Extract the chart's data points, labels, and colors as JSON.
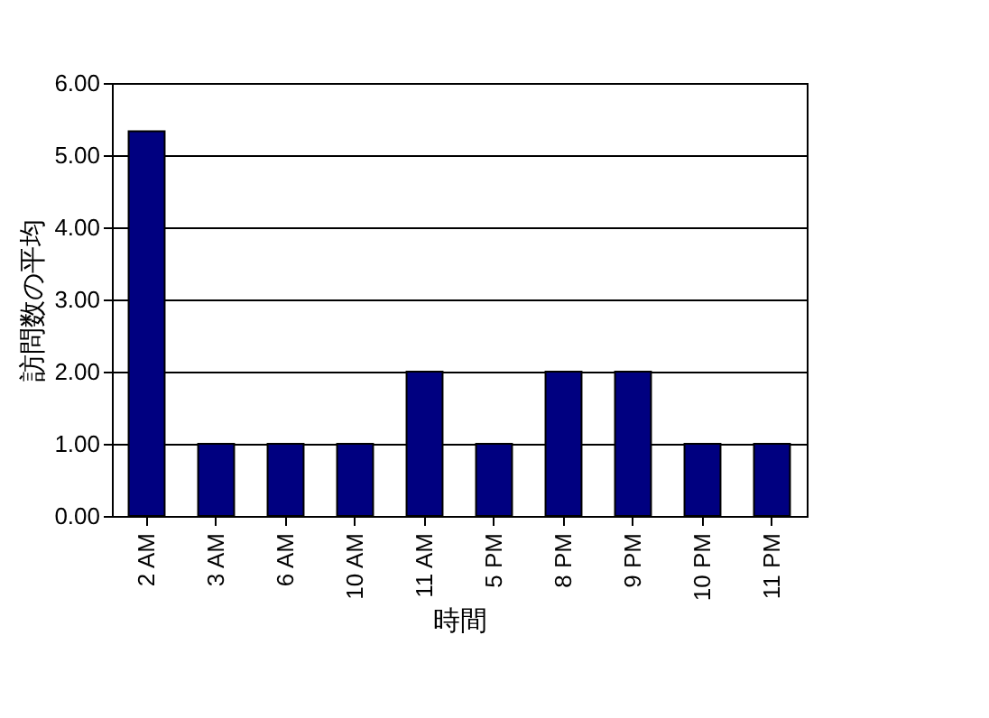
{
  "chart_data": {
    "type": "bar",
    "xlabel": "時間",
    "ylabel": "訪問数の平均",
    "categories": [
      "2 AM",
      "3 AM",
      "6 AM",
      "10 AM",
      "11 AM",
      "5 PM",
      "8 PM",
      "9 PM",
      "10 PM",
      "11 PM"
    ],
    "values": [
      5.33,
      1,
      1,
      1,
      2,
      1,
      2,
      2,
      1,
      1
    ],
    "color": "#000080",
    "ylim": [
      0,
      6
    ],
    "yticks": [
      {
        "value": 0,
        "label": "0.00"
      },
      {
        "value": 1,
        "label": "1.00"
      },
      {
        "value": 2,
        "label": "2.00"
      },
      {
        "value": 3,
        "label": "3.00"
      },
      {
        "value": 4,
        "label": "4.00"
      },
      {
        "value": 5,
        "label": "5.00"
      },
      {
        "value": 6,
        "label": "6.00"
      }
    ],
    "grid": "y"
  }
}
